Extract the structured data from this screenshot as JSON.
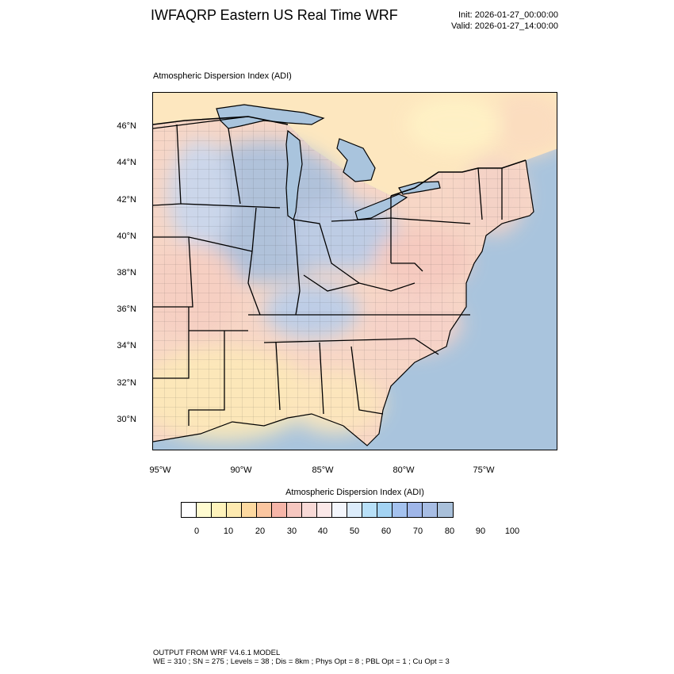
{
  "header": {
    "title": "IWFAQRP Eastern US Real Time WRF",
    "init": "Init: 2026-01-27_00:00:00",
    "valid": "Valid: 2026-01-27_14:00:00"
  },
  "plot": {
    "title": "Atmospheric Dispersion Index   (ADI)",
    "lat_labels": [
      "46°N",
      "44°N",
      "42°N",
      "40°N",
      "38°N",
      "36°N",
      "34°N",
      "32°N",
      "30°N"
    ],
    "lon_labels": [
      "95°W",
      "90°W",
      "85°W",
      "80°W",
      "75°W"
    ],
    "ocean_color": "#a9c4dd",
    "land_colors": [
      "#fde9c0",
      "#f8c7b8",
      "#f3dede",
      "#c9daf1",
      "#a9c0dd"
    ]
  },
  "colorbar": {
    "title": "Atmospheric Dispersion Index  (ADI)",
    "colors": [
      "#ffffff",
      "#fffbd0",
      "#fff3bb",
      "#feeab0",
      "#fdd9a0",
      "#fbc6a0",
      "#f6b5a8",
      "#f6c7c0",
      "#f8d9d6",
      "#fbe8e8",
      "#f4f6fc",
      "#dcecfb",
      "#b8e0f8",
      "#a3d3f3",
      "#a4c2ef",
      "#9fb6e9",
      "#a7bde4",
      "#a9c0da"
    ],
    "ticks": [
      "0",
      "10",
      "20",
      "30",
      "40",
      "50",
      "60",
      "70",
      "80",
      "90",
      "100"
    ]
  },
  "footer": {
    "line1": "OUTPUT FROM WRF V4.6.1 MODEL",
    "line2": "WE = 310 ; SN = 275 ; Levels = 38 ; Dis = 8km ; Phys Opt = 8 ; PBL Opt = 1 ; Cu Opt = 3"
  }
}
